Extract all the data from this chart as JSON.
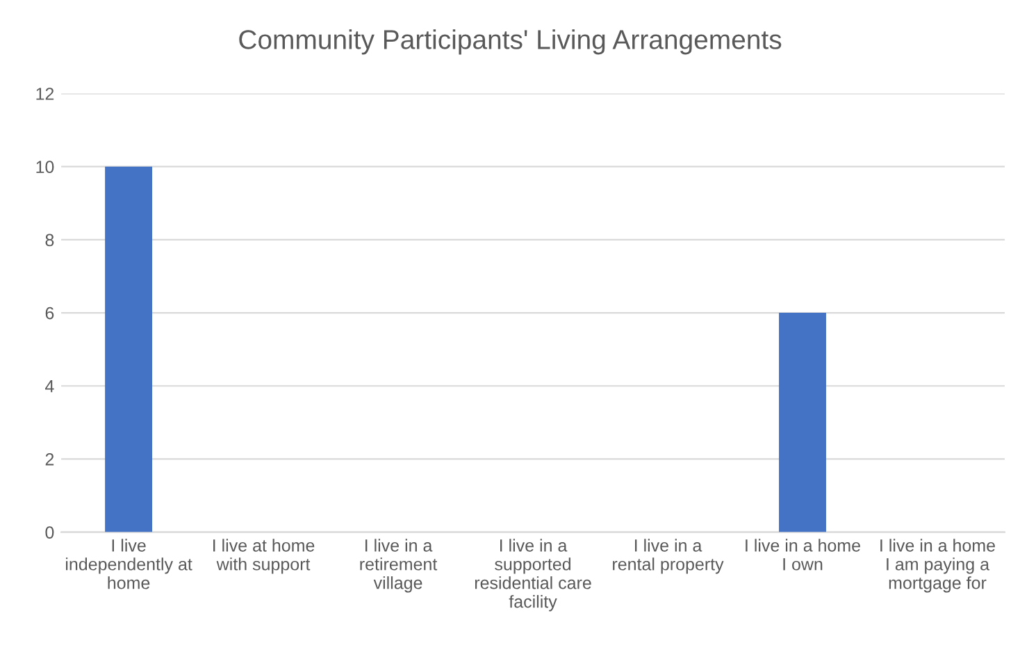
{
  "chart_data": {
    "type": "bar",
    "title": "Community Participants' Living Arrangements",
    "categories": [
      "I live independently at home",
      "I live at home with support",
      "I live in a retirement village",
      "I live in a supported residential care facility",
      "I live in a rental property",
      "I live in a home I own",
      "I live in a home I am paying a mortgage for"
    ],
    "values": [
      10,
      0,
      0,
      0,
      0,
      6,
      0
    ],
    "color": "#4472c4",
    "ylim": [
      0,
      12
    ],
    "yticks": [
      0,
      2,
      4,
      6,
      8,
      10,
      12
    ],
    "grid": "y",
    "legend": false
  }
}
